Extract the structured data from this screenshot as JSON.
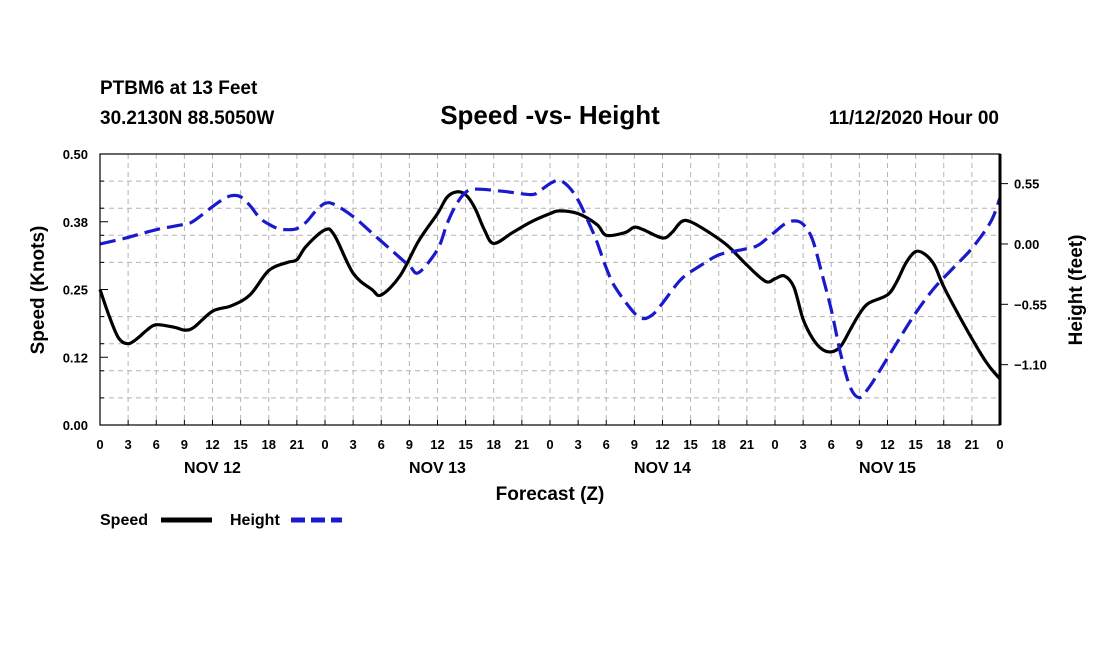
{
  "header": {
    "station": "PTBM6 at 13 Feet",
    "coords": "30.2130N 88.5050W",
    "title": "Speed -vs- Height",
    "issued": "11/12/2020 Hour 00"
  },
  "colors": {
    "speed": "#000000",
    "height": "#1a1acc",
    "grid": "#b4b4b4"
  },
  "chart_data": {
    "type": "line",
    "title": "Speed -vs- Height",
    "xlabel": "Forecast (Z)",
    "ylabel": "Speed (Knots)",
    "ylabel_right": "Height (feet)",
    "x_hours_range": [
      0,
      96
    ],
    "x_tick_step_hours": 3,
    "x_tick_labels": [
      "0",
      "3",
      "6",
      "9",
      "12",
      "15",
      "18",
      "21",
      "0",
      "3",
      "6",
      "9",
      "12",
      "15",
      "18",
      "21",
      "0",
      "3",
      "6",
      "9",
      "12",
      "15",
      "18",
      "21",
      "0",
      "3",
      "6",
      "9",
      "12",
      "15",
      "18",
      "21",
      "0"
    ],
    "day_labels": [
      {
        "label": "NOV 12",
        "hour": 12
      },
      {
        "label": "NOV 13",
        "hour": 36
      },
      {
        "label": "NOV 14",
        "hour": 60
      },
      {
        "label": "NOV 15",
        "hour": 84
      }
    ],
    "y_left": {
      "range": [
        0,
        0.5
      ],
      "ticks": [
        0.0,
        0.125,
        0.375,
        0.5
      ],
      "tick_labels": [
        "0.00",
        "0.12",
        "0.38",
        "0.50"
      ],
      "extra_tick_label": {
        "label": "0.25",
        "value": 0.25
      }
    },
    "y_right": {
      "range": [
        -1.65,
        0.82
      ],
      "ticks": [
        0.55,
        0.0,
        -0.55,
        -1.1
      ],
      "tick_labels": [
        "0.55",
        "0.00",
        "−0.55",
        "−1.10"
      ]
    },
    "legend": [
      {
        "label": "Speed",
        "style": "solid"
      },
      {
        "label": "Height",
        "style": "dashed"
      }
    ],
    "legend_position": "bottom-left",
    "series": [
      {
        "name": "Speed",
        "axis": "left",
        "points": [
          [
            0,
            0.25
          ],
          [
            1,
            0.2
          ],
          [
            2,
            0.16
          ],
          [
            3,
            0.15
          ],
          [
            4,
            0.16
          ],
          [
            5,
            0.175
          ],
          [
            6,
            0.185
          ],
          [
            8,
            0.18
          ],
          [
            9,
            0.175
          ],
          [
            10,
            0.18
          ],
          [
            12,
            0.21
          ],
          [
            14,
            0.22
          ],
          [
            16,
            0.24
          ],
          [
            18,
            0.285
          ],
          [
            20,
            0.3
          ],
          [
            21,
            0.305
          ],
          [
            22,
            0.33
          ],
          [
            24,
            0.36
          ],
          [
            25,
            0.35
          ],
          [
            27,
            0.28
          ],
          [
            29,
            0.25
          ],
          [
            30,
            0.24
          ],
          [
            32,
            0.275
          ],
          [
            34,
            0.34
          ],
          [
            36,
            0.39
          ],
          [
            37,
            0.42
          ],
          [
            38,
            0.43
          ],
          [
            39,
            0.425
          ],
          [
            40,
            0.4
          ],
          [
            41,
            0.36
          ],
          [
            42,
            0.335
          ],
          [
            44,
            0.355
          ],
          [
            46,
            0.375
          ],
          [
            48,
            0.39
          ],
          [
            49,
            0.395
          ],
          [
            51,
            0.39
          ],
          [
            53,
            0.37
          ],
          [
            54,
            0.35
          ],
          [
            56,
            0.355
          ],
          [
            57,
            0.365
          ],
          [
            58,
            0.36
          ],
          [
            60,
            0.345
          ],
          [
            61,
            0.355
          ],
          [
            62,
            0.375
          ],
          [
            63,
            0.375
          ],
          [
            65,
            0.355
          ],
          [
            67,
            0.33
          ],
          [
            69,
            0.295
          ],
          [
            71,
            0.265
          ],
          [
            72,
            0.27
          ],
          [
            73,
            0.275
          ],
          [
            74,
            0.255
          ],
          [
            75,
            0.195
          ],
          [
            76,
            0.16
          ],
          [
            77,
            0.14
          ],
          [
            78,
            0.135
          ],
          [
            79,
            0.145
          ],
          [
            80,
            0.175
          ],
          [
            81,
            0.205
          ],
          [
            82,
            0.225
          ],
          [
            84,
            0.24
          ],
          [
            85,
            0.265
          ],
          [
            86,
            0.3
          ],
          [
            87,
            0.32
          ],
          [
            88,
            0.315
          ],
          [
            89,
            0.295
          ],
          [
            90,
            0.255
          ],
          [
            92,
            0.19
          ],
          [
            94,
            0.13
          ],
          [
            95,
            0.105
          ],
          [
            96,
            0.085
          ]
        ]
      },
      {
        "name": "Height",
        "axis": "right",
        "points": [
          [
            0,
            0.0
          ],
          [
            3,
            0.06
          ],
          [
            6,
            0.13
          ],
          [
            9,
            0.18
          ],
          [
            10,
            0.21
          ],
          [
            12,
            0.34
          ],
          [
            13,
            0.4
          ],
          [
            14,
            0.44
          ],
          [
            15,
            0.43
          ],
          [
            16,
            0.35
          ],
          [
            17,
            0.24
          ],
          [
            18,
            0.18
          ],
          [
            19,
            0.14
          ],
          [
            20,
            0.13
          ],
          [
            21,
            0.14
          ],
          [
            22,
            0.2
          ],
          [
            23,
            0.3
          ],
          [
            24,
            0.37
          ],
          [
            25,
            0.36
          ],
          [
            27,
            0.25
          ],
          [
            29,
            0.1
          ],
          [
            31,
            -0.05
          ],
          [
            33,
            -0.2
          ],
          [
            34,
            -0.26
          ],
          [
            36,
            -0.05
          ],
          [
            37,
            0.18
          ],
          [
            38,
            0.36
          ],
          [
            39,
            0.47
          ],
          [
            40,
            0.5
          ],
          [
            43,
            0.48
          ],
          [
            46,
            0.45
          ],
          [
            47,
            0.49
          ],
          [
            48,
            0.55
          ],
          [
            49,
            0.58
          ],
          [
            50,
            0.52
          ],
          [
            51,
            0.4
          ],
          [
            52,
            0.22
          ],
          [
            53,
            0.02
          ],
          [
            54,
            -0.22
          ],
          [
            55,
            -0.4
          ],
          [
            57,
            -0.63
          ],
          [
            58,
            -0.68
          ],
          [
            59,
            -0.64
          ],
          [
            60,
            -0.54
          ],
          [
            62,
            -0.32
          ],
          [
            64,
            -0.2
          ],
          [
            66,
            -0.1
          ],
          [
            68,
            -0.06
          ],
          [
            70,
            -0.02
          ],
          [
            71,
            0.04
          ],
          [
            72,
            0.11
          ],
          [
            73,
            0.18
          ],
          [
            74,
            0.21
          ],
          [
            75,
            0.18
          ],
          [
            76,
            0.04
          ],
          [
            77,
            -0.27
          ],
          [
            78,
            -0.6
          ],
          [
            79,
            -1.0
          ],
          [
            80,
            -1.3
          ],
          [
            81,
            -1.4
          ],
          [
            82,
            -1.31
          ],
          [
            83,
            -1.18
          ],
          [
            85,
            -0.9
          ],
          [
            87,
            -0.63
          ],
          [
            89,
            -0.4
          ],
          [
            91,
            -0.22
          ],
          [
            93,
            -0.04
          ],
          [
            95,
            0.2
          ],
          [
            96,
            0.42
          ]
        ]
      }
    ]
  }
}
